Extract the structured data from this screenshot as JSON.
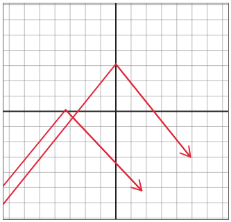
{
  "chart_data": {
    "type": "line",
    "xlim": [
      -7.4,
      7.4
    ],
    "ylim": [
      -7.1,
      7.1
    ],
    "xticks": [
      -7,
      -6,
      -5,
      -4,
      -3,
      -2,
      -1,
      0,
      1,
      2,
      3,
      4,
      5,
      6,
      7
    ],
    "yticks": [
      -7,
      -6,
      -5,
      -4,
      -3,
      -2,
      -1,
      0,
      1,
      2,
      3,
      4,
      5,
      6,
      7
    ],
    "grid": true,
    "tick_labels": false,
    "marker": "arrow",
    "series": [
      {
        "color": "#e0283c",
        "x": [
          -7.4,
          0,
          4.9
        ],
        "values": [
          -6.1,
          3.1,
          -3.0
        ]
      },
      {
        "color": "#e0283c",
        "x": [
          -7.4,
          -3.3,
          1.7
        ],
        "values": [
          -4.9,
          0.1,
          -5.2
        ]
      }
    ]
  }
}
